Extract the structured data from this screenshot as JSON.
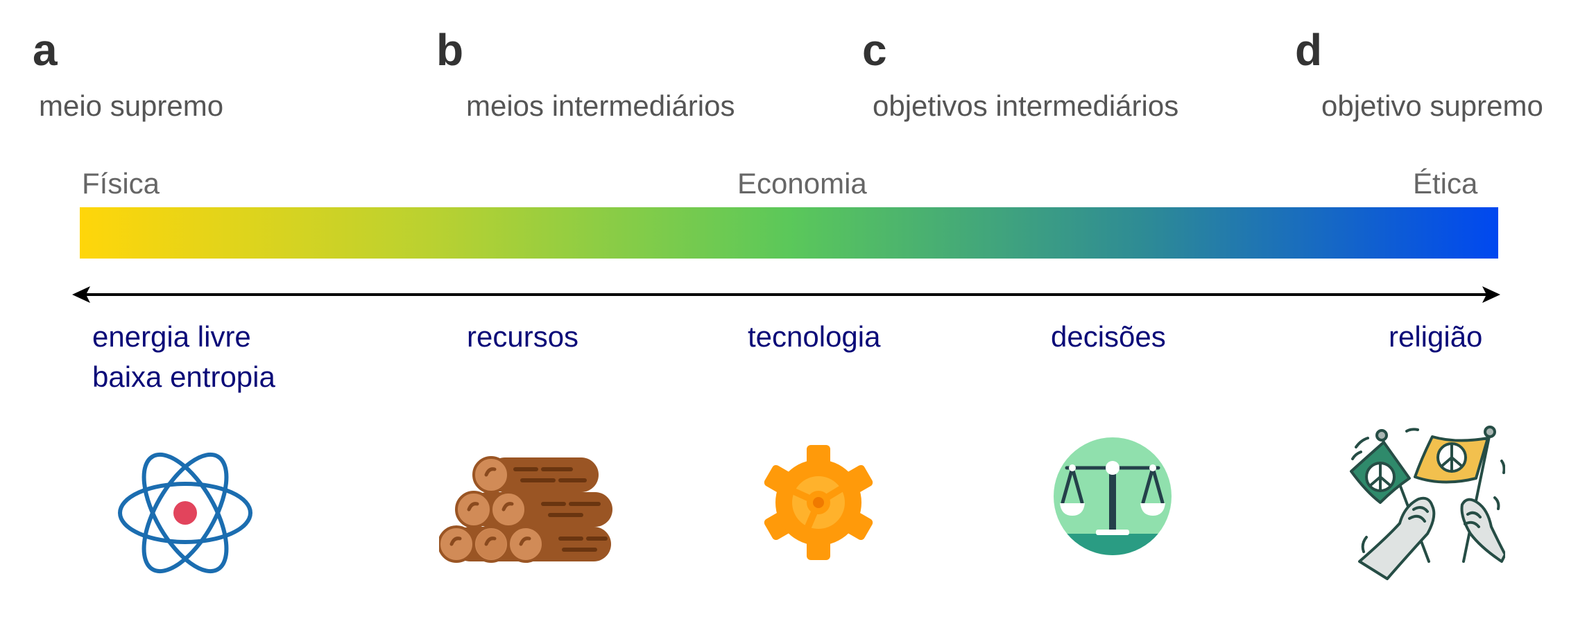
{
  "panels": [
    {
      "letter": "a",
      "subtitle": "meio supremo"
    },
    {
      "letter": "b",
      "subtitle": "meios intermediários"
    },
    {
      "letter": "c",
      "subtitle": "objetivos intermediários"
    },
    {
      "letter": "d",
      "subtitle": "objetivo supremo"
    }
  ],
  "scale": {
    "left": "Física",
    "center": "Economia",
    "right": "Ética",
    "colors": [
      "#FFD60A",
      "#B9D131",
      "#5BC85A",
      "#2E8B95",
      "#0048F0"
    ]
  },
  "items": [
    {
      "lines": [
        "energia livre",
        "baixa entropia"
      ],
      "icon": "atom-icon"
    },
    {
      "lines": [
        "recursos"
      ],
      "icon": "logs-icon"
    },
    {
      "lines": [
        "tecnologia"
      ],
      "icon": "gear-icon"
    },
    {
      "lines": [
        "decisões"
      ],
      "icon": "scales-icon"
    },
    {
      "lines": [
        "religião"
      ],
      "icon": "peace-flags-icon"
    }
  ]
}
